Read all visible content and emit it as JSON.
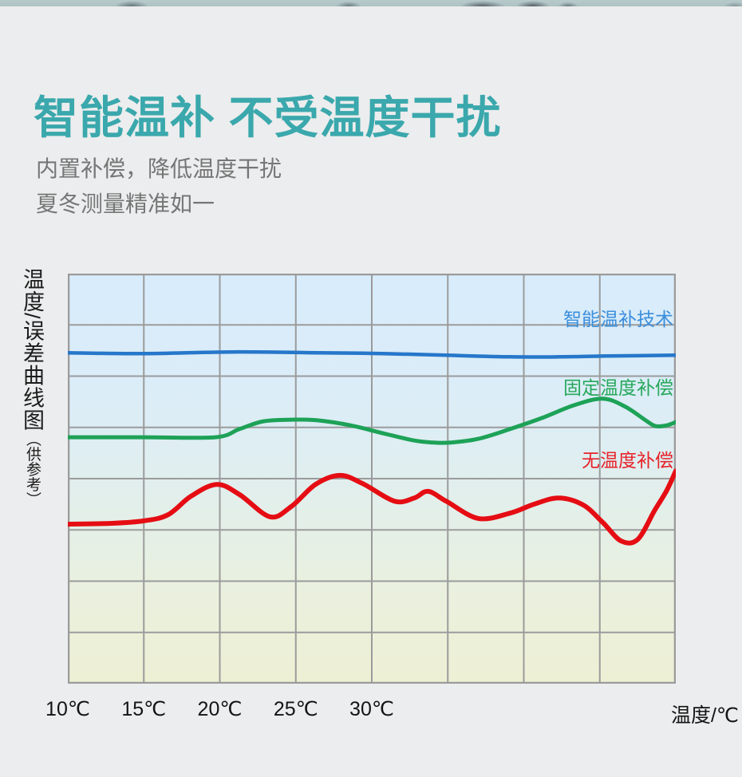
{
  "page": {
    "title": "智能温补 不受温度干扰",
    "subtitle_line1": "内置补偿，降低温度干扰",
    "subtitle_line2": "夏冬测量精准如一",
    "title_color": "#3aa8ac",
    "background_color": "#ecedee",
    "top_strip_color": "#b2c5c7"
  },
  "chart_data": {
    "type": "line",
    "title": "温度/误差曲线图（供参考）",
    "y_axis_label_main": "温度/误差曲线图",
    "y_axis_label_note": "（供参考）",
    "xlabel": "温度/℃",
    "ylabel": "",
    "x_ticks": [
      "10℃",
      "15℃",
      "20℃",
      "25℃",
      "30℃"
    ],
    "x_tick_values": [
      10,
      15,
      20,
      25,
      30
    ],
    "x_range": [
      10,
      50
    ],
    "y_range_norm": [
      0,
      1
    ],
    "grid": {
      "columns": 8,
      "rows": 8,
      "line_color": "#9b9b9b",
      "grid_on": true
    },
    "background_gradient": [
      "#d8ecfc",
      "#e3efe9",
      "#eef0d4"
    ],
    "legend_position": "right-inside",
    "series": [
      {
        "name": "智能温补技术",
        "color": "#2677ca",
        "label_color": "#3a8edb",
        "stroke_width": 4.5,
        "points": [
          [
            10,
            0.807
          ],
          [
            15,
            0.805
          ],
          [
            20.8,
            0.809
          ],
          [
            26.5,
            0.807
          ],
          [
            30.7,
            0.805
          ],
          [
            34.9,
            0.801
          ],
          [
            39.1,
            0.797
          ],
          [
            42.3,
            0.797
          ],
          [
            45.4,
            0.799
          ],
          [
            50,
            0.801
          ]
        ]
      },
      {
        "name": "固定温度补偿",
        "color": "#1da257",
        "label_color": "#27a85b",
        "stroke_width": 5,
        "points": [
          [
            10,
            0.601
          ],
          [
            15,
            0.601
          ],
          [
            19.7,
            0.601
          ],
          [
            21.3,
            0.621
          ],
          [
            22.9,
            0.64
          ],
          [
            25,
            0.644
          ],
          [
            26.5,
            0.642
          ],
          [
            28.6,
            0.63
          ],
          [
            30.7,
            0.611
          ],
          [
            32.8,
            0.593
          ],
          [
            34.1,
            0.588
          ],
          [
            35.2,
            0.588
          ],
          [
            37,
            0.597
          ],
          [
            39.1,
            0.621
          ],
          [
            41.2,
            0.648
          ],
          [
            43.3,
            0.679
          ],
          [
            45.2,
            0.695
          ],
          [
            46.7,
            0.675
          ],
          [
            48.1,
            0.64
          ],
          [
            48.7,
            0.628
          ],
          [
            49.4,
            0.63
          ],
          [
            50,
            0.638
          ]
        ]
      },
      {
        "name": "无温度补偿",
        "color": "#e50d13",
        "label_color": "#e7232a",
        "stroke_width": 6,
        "points": [
          [
            10,
            0.389
          ],
          [
            12.9,
            0.391
          ],
          [
            15,
            0.397
          ],
          [
            16.6,
            0.412
          ],
          [
            18.1,
            0.457
          ],
          [
            19.8,
            0.486
          ],
          [
            21.3,
            0.461
          ],
          [
            23.3,
            0.407
          ],
          [
            24.7,
            0.432
          ],
          [
            26.3,
            0.486
          ],
          [
            27.9,
            0.508
          ],
          [
            29.4,
            0.488
          ],
          [
            31.5,
            0.445
          ],
          [
            32.8,
            0.453
          ],
          [
            33.7,
            0.469
          ],
          [
            34.9,
            0.445
          ],
          [
            37,
            0.403
          ],
          [
            39.1,
            0.416
          ],
          [
            40.7,
            0.438
          ],
          [
            42.3,
            0.453
          ],
          [
            43.9,
            0.436
          ],
          [
            45.2,
            0.393
          ],
          [
            46.4,
            0.348
          ],
          [
            47.5,
            0.352
          ],
          [
            48.6,
            0.422
          ],
          [
            49.4,
            0.471
          ],
          [
            50,
            0.519
          ]
        ]
      }
    ]
  }
}
